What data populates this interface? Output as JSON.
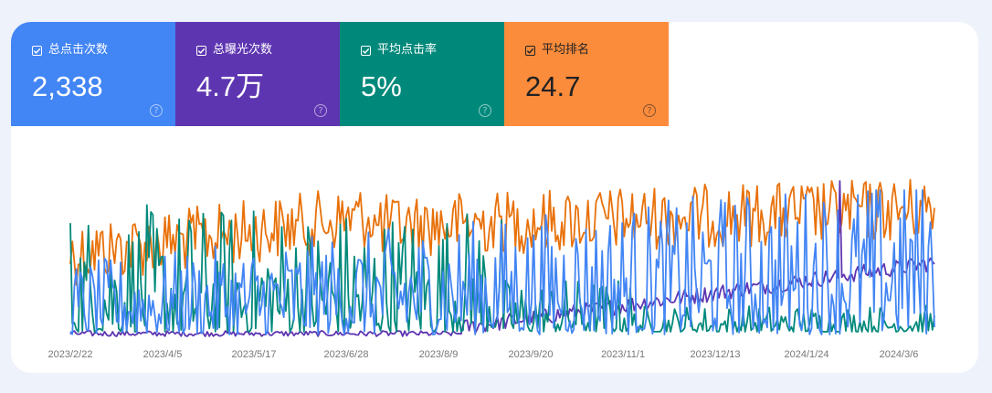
{
  "cards": [
    {
      "label": "总点击次数",
      "value": "2,338",
      "bg": "#4285f4",
      "fg": "#ffffff",
      "checked": true
    },
    {
      "label": "总曝光次数",
      "value": "4.7万",
      "bg": "#5e35b1",
      "fg": "#ffffff",
      "checked": true
    },
    {
      "label": "平均点击率",
      "value": "5%",
      "bg": "#00897b",
      "fg": "#ffffff",
      "checked": true
    },
    {
      "label": "平均排名",
      "value": "24.7",
      "bg": "#fb8c3c",
      "fg": "#202124",
      "checked": true
    }
  ],
  "chart_data": {
    "type": "line",
    "x_ticks": [
      "2023/2/22",
      "2023/4/5",
      "2023/5/17",
      "2023/6/28",
      "2023/8/9",
      "2023/9/20",
      "2023/11/1",
      "2023/12/13",
      "2024/1/24",
      "2024/3/6"
    ],
    "series_colors": {
      "clicks": "#4285f4",
      "impressions": "#5e35b1",
      "ctr": "#00897b",
      "position": "#e8710a"
    },
    "grid": false,
    "legend": "cards-top"
  }
}
